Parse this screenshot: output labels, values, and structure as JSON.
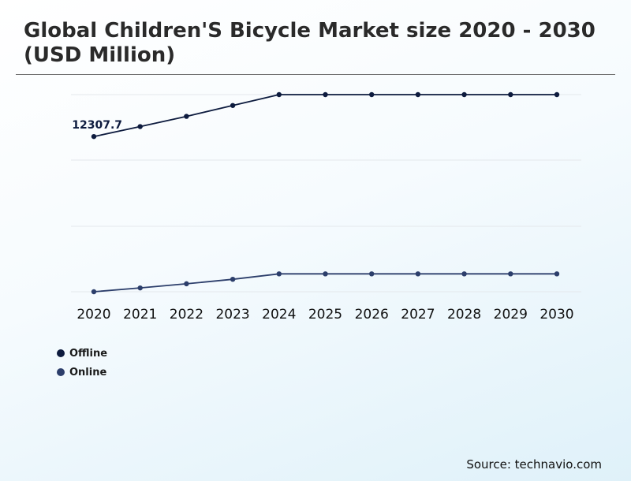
{
  "header": {
    "title": "Global Children'S Bicycle Market size 2020 - 2030 (USD Million)"
  },
  "source": "Source: technavio.com",
  "colors": {
    "offline": "#0d1b3e",
    "online": "#2c3e6b",
    "grid": "#e4e8ec"
  },
  "chart_data": {
    "type": "line",
    "title": "Global Children'S Bicycle Market size 2020 - 2030 (USD Million)",
    "xlabel": "",
    "ylabel": "",
    "categories": [
      "2020",
      "2021",
      "2022",
      "2023",
      "2024",
      "2025",
      "2026",
      "2027",
      "2028",
      "2029",
      "2030"
    ],
    "series": [
      {
        "name": "Offline",
        "color": "#0d1b3e",
        "values": [
          12307.7,
          12620,
          12940,
          13280,
          13620,
          13620,
          13620,
          13620,
          13620,
          13620,
          13620
        ]
      },
      {
        "name": "Online",
        "color": "#2c3e6b",
        "values": [
          7450,
          7570,
          7700,
          7840,
          8010,
          8010,
          8010,
          8010,
          8010,
          8010,
          8010
        ]
      }
    ],
    "annotations": [
      {
        "series": "Offline",
        "category": "2020",
        "label": "12307.7"
      }
    ],
    "ylim": [
      7450,
      13620
    ],
    "grid": true,
    "legend": "bottom-left"
  }
}
